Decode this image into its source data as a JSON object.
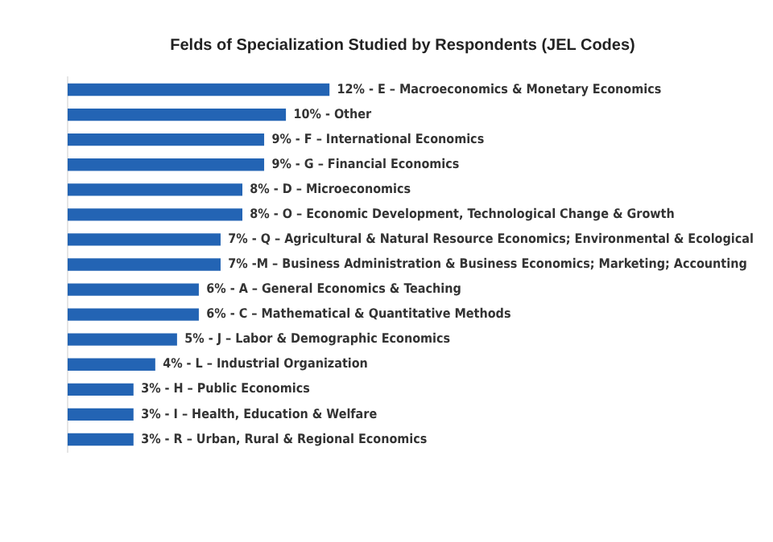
{
  "chart_data": {
    "type": "bar",
    "orientation": "horizontal",
    "title": "Felds of Specialization Studied by Respondents (JEL Codes)",
    "categories": [
      null,
      null,
      null,
      null,
      null,
      null,
      null,
      null,
      null,
      null,
      null,
      null,
      null,
      null,
      null
    ],
    "values": [
      12,
      10,
      9,
      9,
      8,
      8,
      7,
      7,
      6,
      6,
      5,
      4,
      3,
      3,
      3
    ],
    "color": "#2364b4",
    "value_labels": [
      "12% - E – Macroeconomics & Monetary Economics",
      "10% - Other",
      "9% - F – International Economics",
      "9% - G – Financial Economics",
      "8% - D – Microeconomics",
      "8% - O – Economic Development, Technological Change & Growth",
      "7% - Q – Agricultural & Natural Resource Economics; Environmental & Ecological",
      "7% -M – Business Administration & Business Economics; Marketing; Accounting",
      "6% - A – General Economics & Teaching",
      "6% - C – Mathematical & Quantitative Methods",
      "5% - J – Labor & Demographic Economics",
      "4% - L – Industrial Organization",
      "3% - H – Public Economics",
      "3% - I – Health, Education & Welfare",
      "3% - R – Urban, Rural & Regional Economics"
    ],
    "legend": false
  }
}
